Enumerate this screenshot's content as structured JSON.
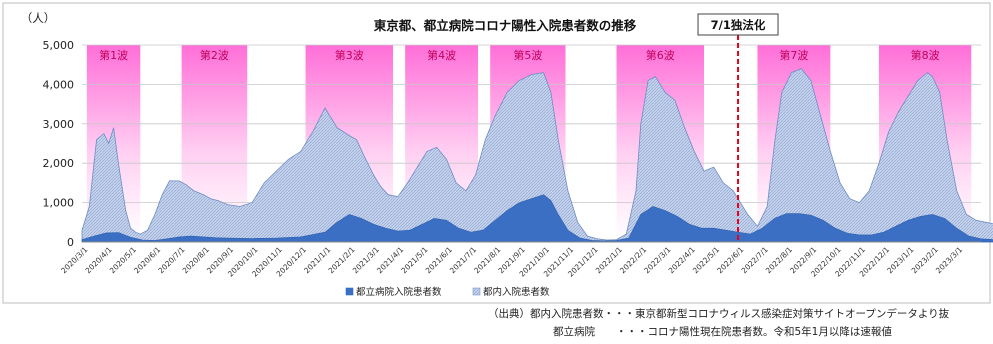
{
  "chart_data": {
    "type": "area",
    "title": "東京都、都立病院コロナ陽性入院患者数の推移",
    "ylabel": "（人）",
    "ylim": [
      0,
      5000
    ],
    "yticks": [
      0,
      1000,
      2000,
      3000,
      4000,
      5000
    ],
    "ytick_labels": [
      "0",
      "1,000",
      "2,000",
      "3,000",
      "4,000",
      "5,000"
    ],
    "x_tick_labels": [
      "2020/3/1",
      "2020/4/1",
      "2020/5/1",
      "2020/6/1",
      "2020/7/1",
      "2020/8/1",
      "2020/9/1",
      "2020/10/1",
      "2020/11/1",
      "2020/12/1",
      "2021/1/1",
      "2021/2/1",
      "2021/3/1",
      "2021/4/1",
      "2021/5/1",
      "2021/6/1",
      "2021/7/1",
      "2021/8/1",
      "2021/9/1",
      "2021/10/1",
      "2021/11/1",
      "2021/12/1",
      "2022/1/1",
      "2022/2/1",
      "2022/3/1",
      "2022/4/1",
      "2022/5/1",
      "2022/6/1",
      "2022/7/1",
      "2022/8/1",
      "2022/9/1",
      "2022/10/1",
      "2022/11/1",
      "2022/12/1",
      "2023/1/1",
      "2023/2/1",
      "2023/3/1"
    ],
    "legend_position": "bottom",
    "legend": [
      {
        "label": "都立病院入院患者数",
        "color": "#3a6fc4"
      },
      {
        "label": "都内入院患者数",
        "color": "#b9c9e6"
      }
    ],
    "waves": [
      {
        "label": "第1波",
        "start": 0.2,
        "end": 2.4
      },
      {
        "label": "第2波",
        "start": 4.1,
        "end": 6.8
      },
      {
        "label": "第3波",
        "start": 9.2,
        "end": 12.8
      },
      {
        "label": "第4波",
        "start": 13.3,
        "end": 16.3
      },
      {
        "label": "第5波",
        "start": 16.8,
        "end": 19.9
      },
      {
        "label": "第6波",
        "start": 22.0,
        "end": 25.6
      },
      {
        "label": "第7波",
        "start": 27.8,
        "end": 30.8
      },
      {
        "label": "第8波",
        "start": 32.8,
        "end": 36.6
      }
    ],
    "annotation": {
      "label": "7/1独法化",
      "x": 27.0,
      "color": "#e8001c"
    },
    "series": [
      {
        "name": "都内入院患者数",
        "color": "#b9c9e6",
        "x": [
          0,
          0.3,
          0.6,
          0.9,
          1.1,
          1.3,
          1.5,
          1.8,
          2.0,
          2.2,
          2.4,
          2.7,
          3.0,
          3.3,
          3.6,
          4.0,
          4.3,
          4.6,
          5.0,
          5.3,
          5.6,
          6.0,
          6.5,
          7.0,
          7.5,
          8.0,
          8.5,
          9.0,
          9.5,
          10.0,
          10.5,
          11.0,
          11.3,
          11.6,
          12.0,
          12.3,
          12.6,
          13.0,
          13.4,
          13.8,
          14.2,
          14.6,
          15.0,
          15.4,
          15.8,
          16.2,
          16.6,
          17.0,
          17.5,
          18.0,
          18.5,
          19.0,
          19.3,
          19.6,
          20.0,
          20.4,
          20.8,
          21.2,
          21.6,
          22.0,
          22.4,
          22.8,
          23.0,
          23.3,
          23.6,
          24.0,
          24.4,
          24.8,
          25.2,
          25.6,
          26.0,
          26.4,
          26.8,
          27.0,
          27.4,
          27.8,
          28.2,
          28.5,
          28.8,
          29.2,
          29.6,
          30.0,
          30.4,
          30.8,
          31.2,
          31.6,
          32.0,
          32.4,
          32.8,
          33.2,
          33.6,
          34.0,
          34.4,
          34.8,
          35.0,
          35.3,
          35.6,
          36.0,
          36.4,
          36.8,
          37.2,
          37.6,
          38.0
        ],
        "values": [
          300,
          900,
          2600,
          2750,
          2500,
          2900,
          2000,
          800,
          350,
          250,
          200,
          300,
          700,
          1200,
          1550,
          1550,
          1450,
          1300,
          1200,
          1100,
          1050,
          950,
          900,
          1000,
          1500,
          1800,
          2100,
          2300,
          2800,
          3400,
          2900,
          2700,
          2600,
          2200,
          1700,
          1400,
          1200,
          1150,
          1500,
          1900,
          2300,
          2400,
          2100,
          1500,
          1300,
          1700,
          2600,
          3200,
          3800,
          4100,
          4250,
          4300,
          3800,
          2600,
          1300,
          500,
          150,
          80,
          50,
          60,
          200,
          1300,
          3000,
          4100,
          4200,
          3800,
          3600,
          2900,
          2300,
          1800,
          1900,
          1500,
          1300,
          1100,
          700,
          400,
          900,
          2500,
          3800,
          4300,
          4400,
          4100,
          3200,
          2300,
          1500,
          1100,
          1000,
          1300,
          2000,
          2800,
          3300,
          3700,
          4100,
          4300,
          4200,
          3800,
          2600,
          1300,
          700,
          550,
          500,
          450,
          400
        ]
      },
      {
        "name": "都立病院入院患者数",
        "color": "#3a6fc4",
        "x": [
          0,
          0.5,
          1.0,
          1.5,
          2.0,
          2.5,
          3.0,
          3.5,
          4.0,
          4.5,
          5.0,
          5.5,
          6.0,
          7.0,
          8.0,
          9.0,
          10.0,
          10.5,
          11.0,
          11.5,
          12.0,
          12.5,
          13.0,
          13.5,
          14.0,
          14.5,
          15.0,
          15.5,
          16.0,
          16.5,
          17.0,
          17.5,
          18.0,
          18.5,
          19.0,
          19.3,
          19.6,
          20.0,
          20.5,
          21.0,
          21.5,
          22.0,
          22.5,
          23.0,
          23.5,
          24.0,
          24.5,
          25.0,
          25.5,
          26.0,
          26.5,
          27.0,
          27.5,
          28.0,
          28.5,
          29.0,
          29.5,
          30.0,
          30.5,
          31.0,
          31.5,
          32.0,
          32.5,
          33.0,
          33.5,
          34.0,
          34.5,
          35.0,
          35.5,
          36.0,
          36.5,
          37.0,
          37.5,
          38.0
        ],
        "values": [
          60,
          150,
          230,
          240,
          120,
          50,
          40,
          80,
          130,
          150,
          130,
          110,
          100,
          90,
          100,
          130,
          250,
          500,
          700,
          600,
          450,
          350,
          280,
          300,
          450,
          600,
          550,
          350,
          250,
          300,
          550,
          800,
          1000,
          1100,
          1200,
          1050,
          700,
          300,
          100,
          40,
          30,
          40,
          100,
          700,
          900,
          800,
          650,
          450,
          350,
          350,
          300,
          250,
          200,
          350,
          600,
          720,
          720,
          680,
          550,
          350,
          220,
          180,
          180,
          250,
          400,
          550,
          650,
          700,
          600,
          350,
          150,
          80,
          60,
          50
        ]
      }
    ]
  },
  "source_note": {
    "line1": "（出典）都内入院患者数・・・東京都新型コロナウィルス感染症対策サイトオープンデータより抜",
    "line2": "都立病院　　・・・コロナ陽性現在院患者数。令和5年1月以降は速報値"
  }
}
